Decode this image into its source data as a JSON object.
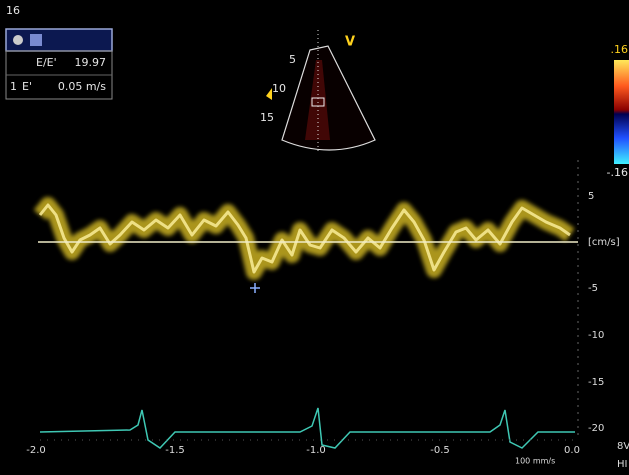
{
  "header": {
    "frame": "16"
  },
  "measurements": {
    "ratio_label": "E/E'",
    "ratio_value": "19.97",
    "index": "1",
    "velocity_label": "E'",
    "velocity_value": "0.05 m/s"
  },
  "sector": {
    "mode": "V",
    "depths": [
      "5",
      "10",
      "15"
    ]
  },
  "color_bar": {
    "top": ".16",
    "bottom": "-.16"
  },
  "velocity_scale": {
    "ticks": [
      "5",
      "[cm/s]",
      "-5",
      "-10",
      "-15",
      "-20"
    ]
  },
  "time_axis": {
    "ticks": [
      "-2.0",
      "-1.5",
      "-1.0",
      "-0.5",
      "0.0"
    ],
    "sweep": "100 mm/s"
  },
  "probe": {
    "name": "8V",
    "preset": "HI"
  }
}
